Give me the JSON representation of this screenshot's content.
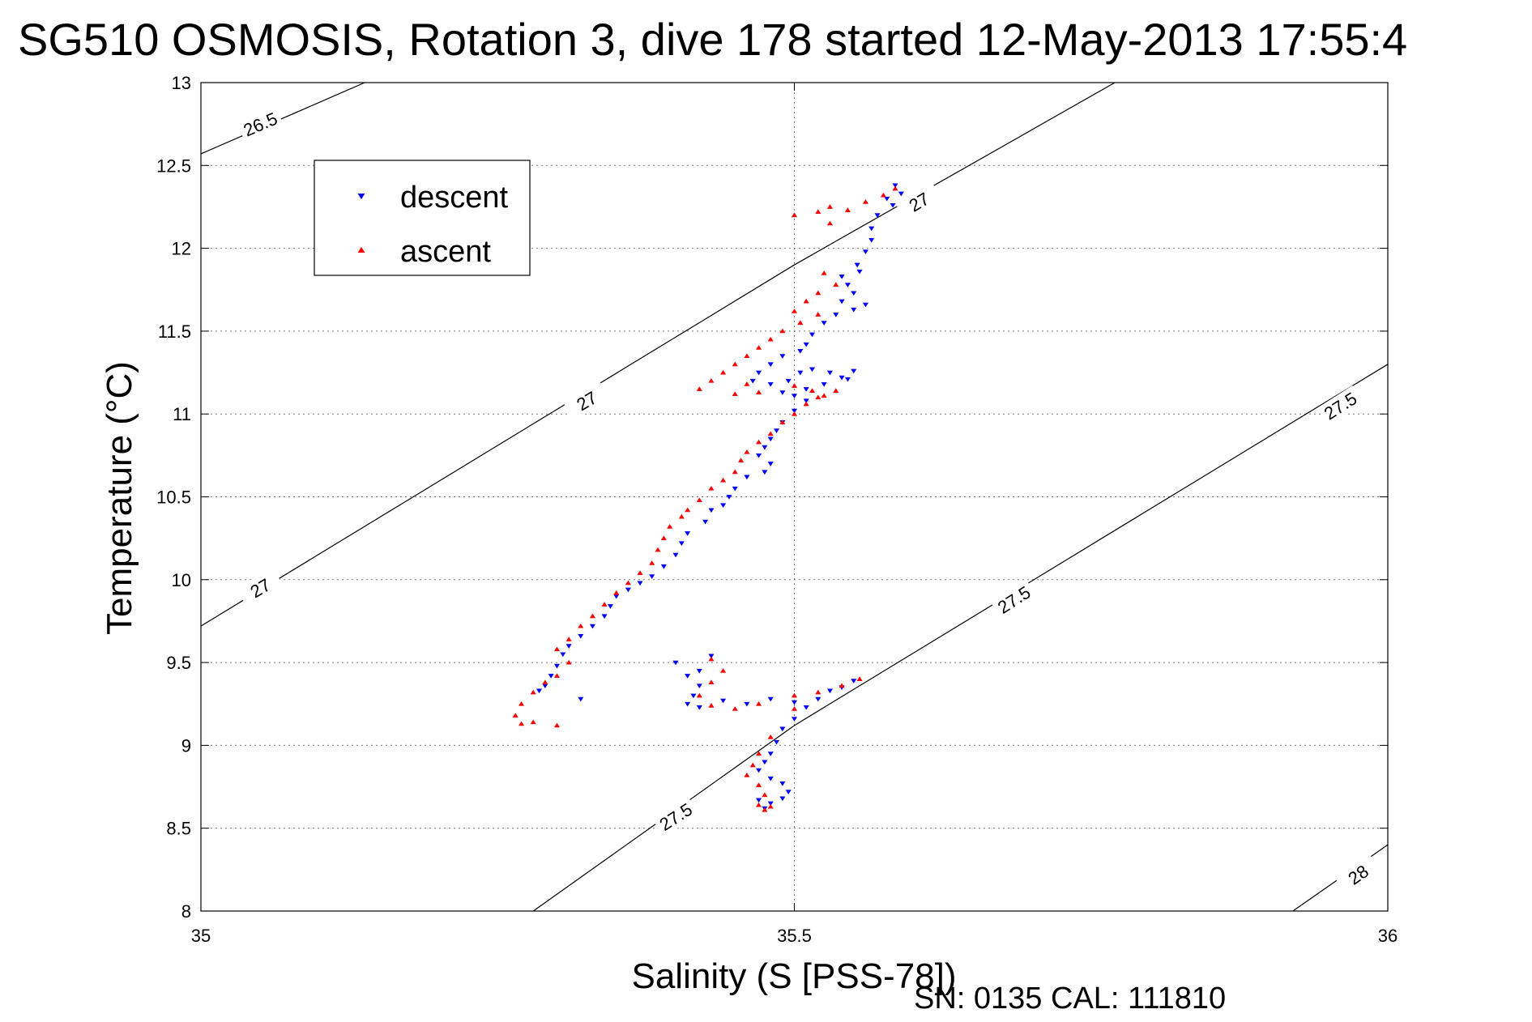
{
  "chart_data": {
    "type": "scatter",
    "title": "SG510 OSMOSIS, Rotation 3, dive 178 started 12-May-2013 17:55:4",
    "xlabel": "Salinity (S [PSS-78])",
    "ylabel": "Temperature (°C)",
    "xlim": [
      35,
      36
    ],
    "ylim": [
      8,
      13
    ],
    "xticks": [
      35,
      35.5,
      36
    ],
    "xtick_labels": [
      "35",
      "35.5",
      "36"
    ],
    "yticks": [
      8,
      8.5,
      9,
      9.5,
      10,
      10.5,
      11,
      11.5,
      12,
      12.5,
      13
    ],
    "ytick_labels": [
      "8",
      "8.5",
      "9",
      "9.5",
      "10",
      "10.5",
      "11",
      "11.5",
      "12",
      "12.5",
      "13"
    ],
    "grid": true,
    "legend_position": "top-left",
    "footer": "SN: 0135  CAL: 111810",
    "density_contours": [
      {
        "level": 26.5,
        "points": [
          [
            35.0,
            12.57
          ],
          [
            35.138,
            13.0
          ]
        ],
        "labels": [
          {
            "text": "26.5",
            "at": [
              35.05,
              12.75
            ]
          }
        ]
      },
      {
        "level": 27.0,
        "points": [
          [
            35.0,
            9.72
          ],
          [
            35.5,
            11.9
          ],
          [
            35.77,
            13.0
          ]
        ],
        "labels": [
          {
            "text": "27",
            "at": [
              35.05,
              9.95
            ]
          },
          {
            "text": "27",
            "at": [
              35.325,
              11.08
            ]
          },
          {
            "text": "27",
            "at": [
              35.605,
              12.28
            ]
          }
        ]
      },
      {
        "level": 27.5,
        "points": [
          [
            35.28,
            8.0
          ],
          [
            35.5,
            9.12
          ],
          [
            36.0,
            11.3
          ]
        ],
        "labels": [
          {
            "text": "27.5",
            "at": [
              35.4,
              8.57
            ]
          },
          {
            "text": "27.5",
            "at": [
              35.685,
              9.88
            ]
          },
          {
            "text": "27.5",
            "at": [
              35.96,
              11.05
            ]
          }
        ]
      },
      {
        "level": 28.0,
        "points": [
          [
            35.92,
            8.0
          ],
          [
            36.0,
            8.4
          ]
        ],
        "labels": [
          {
            "text": "28",
            "at": [
              35.975,
              8.22
            ]
          }
        ]
      }
    ],
    "series": [
      {
        "name": "descent",
        "color": "#0000ff",
        "marker": "triangle-down",
        "points": [
          [
            35.585,
            12.38
          ],
          [
            35.59,
            12.33
          ],
          [
            35.578,
            12.3
          ],
          [
            35.583,
            12.26
          ],
          [
            35.57,
            12.2
          ],
          [
            35.565,
            12.12
          ],
          [
            35.565,
            12.05
          ],
          [
            35.56,
            11.98
          ],
          [
            35.553,
            11.9
          ],
          [
            35.555,
            11.86
          ],
          [
            35.54,
            11.83
          ],
          [
            35.545,
            11.78
          ],
          [
            35.55,
            11.73
          ],
          [
            35.54,
            11.68
          ],
          [
            35.56,
            11.66
          ],
          [
            35.55,
            11.63
          ],
          [
            35.535,
            11.6
          ],
          [
            35.525,
            11.55
          ],
          [
            35.515,
            11.48
          ],
          [
            35.51,
            11.42
          ],
          [
            35.505,
            11.38
          ],
          [
            35.49,
            11.35
          ],
          [
            35.48,
            11.3
          ],
          [
            35.47,
            11.25
          ],
          [
            35.465,
            11.2
          ],
          [
            35.48,
            11.18
          ],
          [
            35.495,
            11.2
          ],
          [
            35.505,
            11.25
          ],
          [
            35.515,
            11.27
          ],
          [
            35.53,
            11.25
          ],
          [
            35.54,
            11.22
          ],
          [
            35.55,
            11.26
          ],
          [
            35.545,
            11.21
          ],
          [
            35.525,
            11.18
          ],
          [
            35.51,
            11.15
          ],
          [
            35.49,
            11.13
          ],
          [
            35.5,
            11.11
          ],
          [
            35.51,
            11.08
          ],
          [
            35.5,
            11.02
          ],
          [
            35.49,
            10.95
          ],
          [
            35.485,
            10.9
          ],
          [
            35.48,
            10.85
          ],
          [
            35.475,
            10.8
          ],
          [
            35.47,
            10.75
          ],
          [
            35.48,
            10.7
          ],
          [
            35.475,
            10.65
          ],
          [
            35.46,
            10.62
          ],
          [
            35.45,
            10.55
          ],
          [
            35.445,
            10.5
          ],
          [
            35.44,
            10.45
          ],
          [
            35.43,
            10.42
          ],
          [
            35.425,
            10.35
          ],
          [
            35.41,
            10.28
          ],
          [
            35.405,
            10.22
          ],
          [
            35.4,
            10.15
          ],
          [
            35.39,
            10.08
          ],
          [
            35.38,
            10.02
          ],
          [
            35.37,
            9.98
          ],
          [
            35.36,
            9.94
          ],
          [
            35.35,
            9.9
          ],
          [
            35.345,
            9.84
          ],
          [
            35.34,
            9.78
          ],
          [
            35.33,
            9.72
          ],
          [
            35.32,
            9.66
          ],
          [
            35.31,
            9.6
          ],
          [
            35.305,
            9.55
          ],
          [
            35.3,
            9.48
          ],
          [
            35.295,
            9.42
          ],
          [
            35.29,
            9.36
          ],
          [
            35.285,
            9.33
          ],
          [
            35.32,
            9.28
          ],
          [
            35.4,
            9.5
          ],
          [
            35.41,
            9.42
          ],
          [
            35.42,
            9.36
          ],
          [
            35.42,
            9.45
          ],
          [
            35.43,
            9.54
          ],
          [
            35.415,
            9.3
          ],
          [
            35.41,
            9.25
          ],
          [
            35.42,
            9.23
          ],
          [
            35.44,
            9.27
          ],
          [
            35.46,
            9.25
          ],
          [
            35.48,
            9.28
          ],
          [
            35.5,
            9.26
          ],
          [
            35.51,
            9.23
          ],
          [
            35.52,
            9.28
          ],
          [
            35.54,
            9.35
          ],
          [
            35.55,
            9.39
          ],
          [
            35.53,
            9.33
          ],
          [
            35.5,
            9.16
          ],
          [
            35.49,
            9.1
          ],
          [
            35.485,
            9.02
          ],
          [
            35.48,
            8.95
          ],
          [
            35.475,
            8.9
          ],
          [
            35.47,
            8.85
          ],
          [
            35.48,
            8.8
          ],
          [
            35.49,
            8.77
          ],
          [
            35.495,
            8.72
          ],
          [
            35.49,
            8.68
          ],
          [
            35.48,
            8.65
          ],
          [
            35.475,
            8.62
          ],
          [
            35.47,
            8.67
          ]
        ]
      },
      {
        "name": "ascent",
        "color": "#ff0000",
        "marker": "triangle-up",
        "points": [
          [
            35.585,
            12.36
          ],
          [
            35.575,
            12.32
          ],
          [
            35.56,
            12.28
          ],
          [
            35.545,
            12.23
          ],
          [
            35.53,
            12.25
          ],
          [
            35.52,
            12.22
          ],
          [
            35.5,
            12.2
          ],
          [
            35.53,
            12.15
          ],
          [
            35.525,
            11.85
          ],
          [
            35.535,
            11.78
          ],
          [
            35.52,
            11.73
          ],
          [
            35.51,
            11.68
          ],
          [
            35.5,
            11.62
          ],
          [
            35.52,
            11.6
          ],
          [
            35.505,
            11.55
          ],
          [
            35.49,
            11.5
          ],
          [
            35.48,
            11.45
          ],
          [
            35.47,
            11.4
          ],
          [
            35.46,
            11.35
          ],
          [
            35.45,
            11.3
          ],
          [
            35.44,
            11.25
          ],
          [
            35.43,
            11.2
          ],
          [
            35.42,
            11.15
          ],
          [
            35.45,
            11.12
          ],
          [
            35.46,
            11.18
          ],
          [
            35.47,
            11.13
          ],
          [
            35.5,
            11.17
          ],
          [
            35.515,
            11.14
          ],
          [
            35.525,
            11.11
          ],
          [
            35.535,
            11.14
          ],
          [
            35.52,
            11.1
          ],
          [
            35.51,
            11.06
          ],
          [
            35.5,
            11.0
          ],
          [
            35.49,
            10.95
          ],
          [
            35.48,
            10.88
          ],
          [
            35.47,
            10.83
          ],
          [
            35.46,
            10.77
          ],
          [
            35.455,
            10.72
          ],
          [
            35.45,
            10.65
          ],
          [
            35.44,
            10.6
          ],
          [
            35.43,
            10.55
          ],
          [
            35.42,
            10.48
          ],
          [
            35.41,
            10.42
          ],
          [
            35.405,
            10.38
          ],
          [
            35.395,
            10.32
          ],
          [
            35.39,
            10.25
          ],
          [
            35.385,
            10.18
          ],
          [
            35.38,
            10.1
          ],
          [
            35.37,
            10.04
          ],
          [
            35.36,
            9.98
          ],
          [
            35.35,
            9.92
          ],
          [
            35.34,
            9.85
          ],
          [
            35.33,
            9.78
          ],
          [
            35.32,
            9.72
          ],
          [
            35.31,
            9.64
          ],
          [
            35.3,
            9.58
          ],
          [
            35.31,
            9.5
          ],
          [
            35.3,
            9.42
          ],
          [
            35.29,
            9.38
          ],
          [
            35.28,
            9.32
          ],
          [
            35.27,
            9.25
          ],
          [
            35.265,
            9.18
          ],
          [
            35.27,
            9.13
          ],
          [
            35.28,
            9.14
          ],
          [
            35.3,
            9.12
          ],
          [
            35.43,
            9.52
          ],
          [
            35.44,
            9.45
          ],
          [
            35.43,
            9.38
          ],
          [
            35.42,
            9.3
          ],
          [
            35.43,
            9.24
          ],
          [
            35.45,
            9.22
          ],
          [
            35.47,
            9.25
          ],
          [
            35.5,
            9.3
          ],
          [
            35.52,
            9.32
          ],
          [
            35.54,
            9.36
          ],
          [
            35.555,
            9.4
          ],
          [
            35.5,
            9.22
          ],
          [
            35.48,
            9.05
          ],
          [
            35.47,
            8.95
          ],
          [
            35.465,
            8.88
          ],
          [
            35.46,
            8.82
          ],
          [
            35.47,
            8.76
          ],
          [
            35.475,
            8.7
          ],
          [
            35.47,
            8.64
          ],
          [
            35.475,
            8.61
          ],
          [
            35.48,
            8.63
          ]
        ]
      }
    ]
  }
}
